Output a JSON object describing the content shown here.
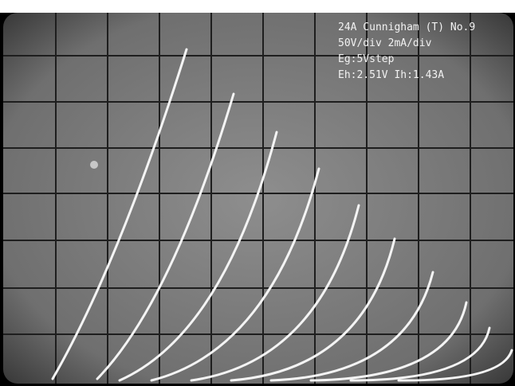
{
  "screen": {
    "labels": [
      "24A Cunnigham (T) No.9",
      "50V/div 2mA/div",
      "Eg:5Vstep",
      "Eh:2.51V Ih:1.43A"
    ]
  }
}
